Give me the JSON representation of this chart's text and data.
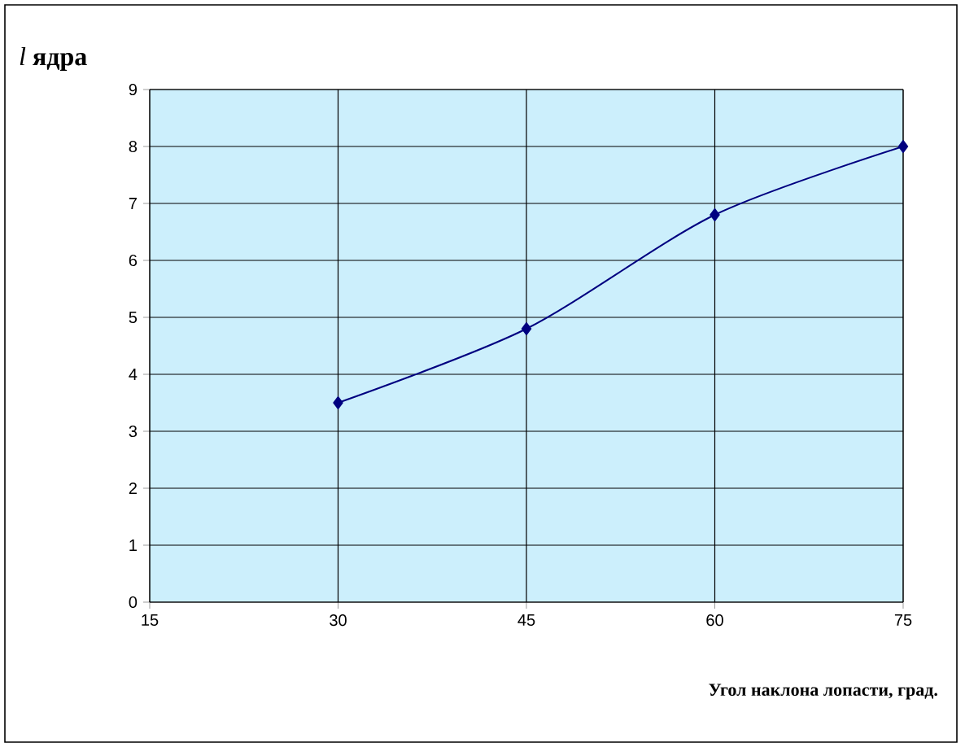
{
  "chart_data": {
    "type": "line",
    "xlabel": "Угол наклона лопасти, град.",
    "ylabel": "*l* **ядра**",
    "x": [
      30,
      45,
      60,
      75
    ],
    "series": [
      {
        "color": "#000080",
        "values": [
          3.5,
          4.8,
          6.8,
          8
        ]
      }
    ],
    "xlim": [
      15,
      75
    ],
    "xticks": [
      15,
      30,
      45,
      60,
      75
    ],
    "ylim": [
      0,
      9
    ],
    "yticks": [
      0,
      1,
      2,
      3,
      4,
      5,
      6,
      7,
      8,
      9
    ],
    "grid": true,
    "marker": "diamond",
    "line_style": "solid"
  }
}
